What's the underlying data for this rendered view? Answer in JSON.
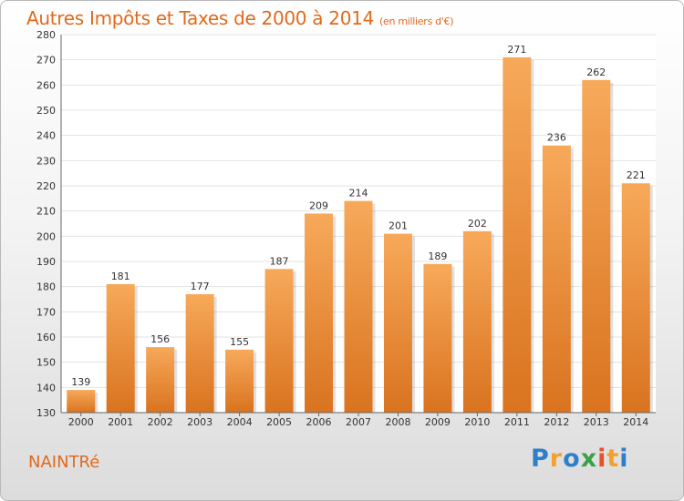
{
  "header": {
    "title": "Autres Impôts et Taxes de 2000 à 2014",
    "subtitle": "(en milliers d'€)"
  },
  "footer": {
    "place": "NAINTRé",
    "logo": "Proxiti"
  },
  "colors": {
    "accent": "#e06a1e",
    "bar_top": "#f7a95a",
    "bar_bottom": "#d9731f",
    "grid": "#e3e3e3"
  },
  "chart_data": {
    "type": "bar",
    "title": "Autres Impôts et Taxes de 2000 à 2014",
    "subtitle": "(en milliers d'€)",
    "categories": [
      "2000",
      "2001",
      "2002",
      "2003",
      "2004",
      "2005",
      "2006",
      "2007",
      "2008",
      "2009",
      "2010",
      "2011",
      "2012",
      "2013",
      "2014"
    ],
    "values": [
      139,
      181,
      156,
      177,
      155,
      187,
      209,
      214,
      201,
      189,
      202,
      271,
      236,
      262,
      221
    ],
    "ylim": [
      130,
      280
    ],
    "yticks": [
      130,
      140,
      150,
      160,
      170,
      180,
      190,
      200,
      210,
      220,
      230,
      240,
      250,
      260,
      270,
      280
    ],
    "grid": true,
    "data_labels": true,
    "legend": "none"
  }
}
